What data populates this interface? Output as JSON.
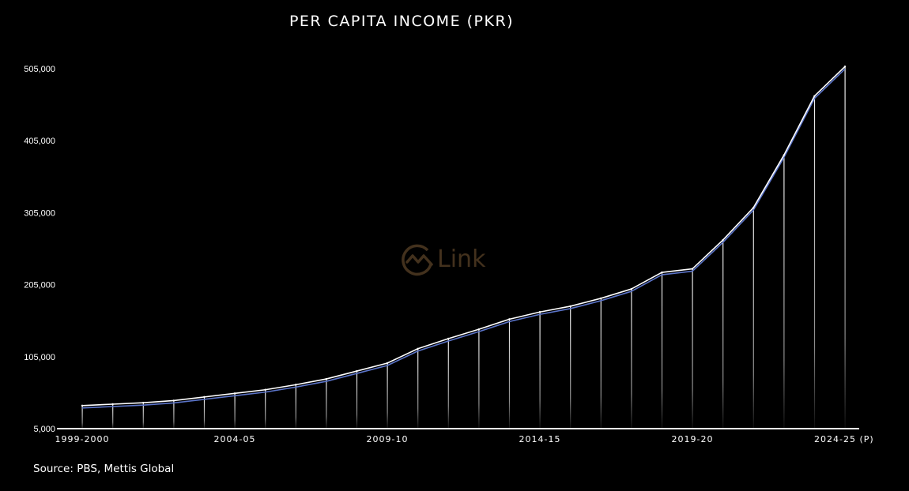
{
  "colors": {
    "background": "#000000",
    "line": "#ffffff",
    "shadow_line": "#5b74c9",
    "axis": "#ffffff",
    "text": "#ffffff",
    "watermark": "#7a5a35"
  },
  "watermark": {
    "icon": "chart-circle-icon",
    "text": "Link"
  },
  "source": "Source: PBS, Mettis Global",
  "chart_data": {
    "type": "line",
    "title": "PER CAPITA INCOME (PKR)",
    "xlabel": "",
    "ylabel": "",
    "ylim": [
      5000,
      505000
    ],
    "yticks": [
      5000,
      105000,
      205000,
      305000,
      405000,
      505000
    ],
    "ytick_labels": [
      "5,000",
      "105,000",
      "205,000",
      "305,000",
      "405,000",
      "505,000"
    ],
    "xtick_labels": [
      "1999-2000",
      "2004-05",
      "2009-10",
      "2014-15",
      "2019-20",
      "2024-25 (P)"
    ],
    "xtick_indices": [
      0,
      5,
      10,
      15,
      20,
      25
    ],
    "grid": false,
    "legend": "none",
    "x": [
      "1999-2000",
      "2000-01",
      "2001-02",
      "2002-03",
      "2003-04",
      "2004-05",
      "2005-06",
      "2006-07",
      "2007-08",
      "2008-09",
      "2009-10",
      "2010-11",
      "2011-12",
      "2012-13",
      "2013-14",
      "2014-15",
      "2015-16",
      "2016-17",
      "2017-18",
      "2018-19",
      "2019-20",
      "2020-21",
      "2021-22",
      "2022-23",
      "2023-24",
      "2024-25 (P)"
    ],
    "series": [
      {
        "values": [
          37000,
          39000,
          41000,
          44000,
          49000,
          54000,
          59000,
          66000,
          74000,
          85000,
          96000,
          116000,
          130000,
          143000,
          157000,
          167000,
          175000,
          186000,
          199000,
          222000,
          227000,
          267000,
          312000,
          385000,
          467000,
          508000
        ]
      }
    ]
  }
}
